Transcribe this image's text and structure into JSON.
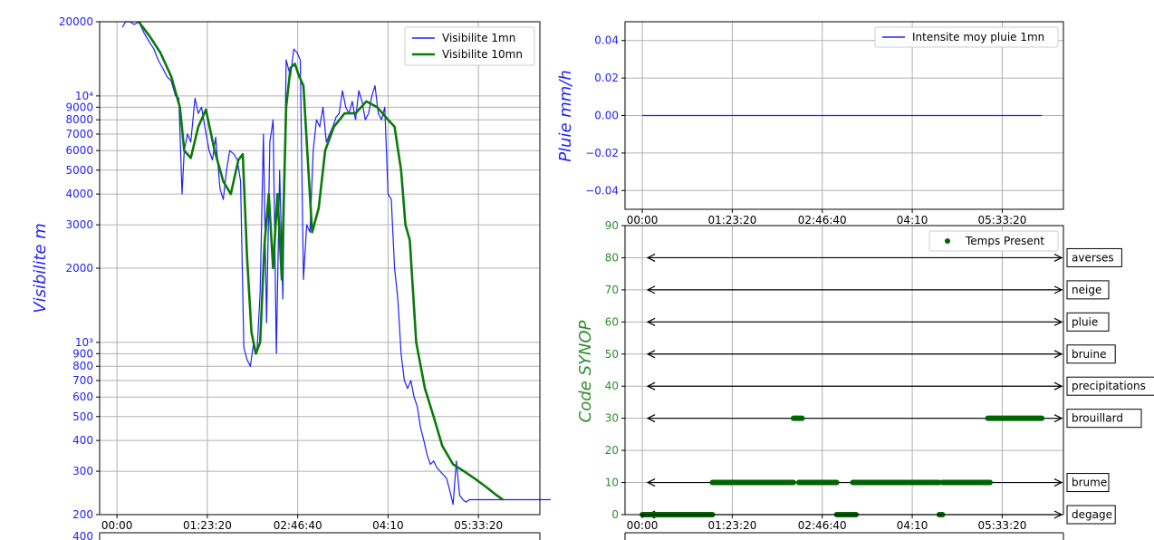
{
  "colors": {
    "vis_1mn": "#1f1fff",
    "vis_10mn": "#0a7a0a",
    "pluie": "#1f1fff",
    "synop": "#006400",
    "axis_label_left": "#1f1fff",
    "axis_label_synop": "#2e8b2e",
    "grid": "#b0b0b0"
  },
  "x_ticks": [
    "00:00",
    "01:23:20",
    "02:46:40",
    "04:10",
    "05:33:20"
  ],
  "chart_data": [
    {
      "type": "line",
      "title": "",
      "xlabel": "",
      "ylabel": "Visibilite  m",
      "yscale": "log",
      "ylim": [
        200,
        20000
      ],
      "y_tick_labels": [
        "20000",
        "10⁴",
        "9000",
        "8000",
        "7000",
        "6000",
        "5000",
        "4000",
        "3000",
        "2000",
        "10³",
        "900",
        "800",
        "700",
        "600",
        "500",
        "400",
        "300",
        "200"
      ],
      "legend_position": "top-right",
      "series": [
        {
          "name": "Visibilite 1mn",
          "x_minutes": [
            5,
            8,
            12,
            16,
            20,
            25,
            30,
            34,
            38,
            42,
            46,
            50,
            54,
            57,
            60,
            62,
            65,
            68,
            72,
            75,
            78,
            81,
            85,
            88,
            91,
            95,
            98,
            101,
            104,
            108,
            111,
            114,
            117,
            120,
            123,
            126,
            129,
            132,
            135,
            138,
            141,
            144,
            147,
            150,
            153,
            156,
            160,
            163,
            166,
            169,
            172,
            175,
            178,
            181,
            184,
            187,
            190,
            193,
            196,
            199,
            202,
            205,
            208,
            211,
            214,
            217,
            220,
            223,
            226,
            229,
            232,
            235,
            238,
            241,
            244,
            247,
            250,
            253,
            256,
            259,
            262,
            265,
            268,
            271,
            274,
            277,
            280,
            283,
            286,
            289,
            292,
            295,
            298,
            301,
            304,
            307,
            310,
            313,
            316,
            319,
            322,
            325,
            328,
            331,
            334,
            337,
            340,
            343,
            346,
            349,
            352,
            355,
            358,
            361,
            364,
            367,
            370,
            373,
            376,
            379,
            382,
            385,
            388,
            391,
            394,
            397,
            400
          ],
          "values": [
            19000,
            20000,
            20000,
            19500,
            20000,
            18000,
            16500,
            15500,
            14000,
            13000,
            12000,
            11500,
            10000,
            9800,
            4000,
            6000,
            7000,
            6500,
            9800,
            8500,
            9000,
            7500,
            6000,
            5500,
            6800,
            4200,
            3800,
            5000,
            6000,
            5800,
            5500,
            4500,
            950,
            850,
            800,
            1000,
            900,
            1600,
            7000,
            1200,
            6500,
            8000,
            900,
            5000,
            1500,
            14000,
            12000,
            15500,
            15000,
            14000,
            1800,
            3000,
            2800,
            6000,
            8000,
            7500,
            9000,
            6500,
            7000,
            7500,
            8200,
            8500,
            10500,
            9000,
            8500,
            9500,
            8000,
            10500,
            9500,
            8000,
            8500,
            10000,
            11000,
            8500,
            8000,
            9000,
            4000,
            3800,
            2000,
            1500,
            900,
            700,
            650,
            700,
            600,
            550,
            450,
            400,
            350,
            320,
            330,
            310,
            300,
            290,
            280,
            250,
            220,
            330,
            240,
            230,
            225,
            230,
            230,
            230,
            230,
            230,
            230,
            230,
            230,
            230,
            230,
            230,
            230,
            230,
            230,
            230,
            230,
            230,
            230,
            230,
            230,
            230,
            230,
            230,
            230,
            230,
            230
          ]
        },
        {
          "name": "Visibilite 10mn",
          "x_minutes": [
            20,
            30,
            40,
            50,
            58,
            62,
            68,
            75,
            82,
            90,
            98,
            105,
            112,
            116,
            120,
            124,
            128,
            132,
            136,
            140,
            144,
            148,
            152,
            156,
            160,
            164,
            168,
            172,
            176,
            180,
            186,
            192,
            200,
            210,
            220,
            230,
            240,
            250,
            256,
            262,
            266,
            270,
            276,
            284,
            292,
            300,
            310,
            320,
            330,
            340,
            350,
            356
          ],
          "values": [
            20000,
            17500,
            15000,
            12000,
            9000,
            6000,
            5600,
            7500,
            8800,
            6000,
            4500,
            4000,
            5500,
            5800,
            2200,
            1100,
            900,
            1000,
            2500,
            4000,
            2000,
            4000,
            1800,
            9000,
            13000,
            13500,
            12000,
            11000,
            5500,
            2800,
            3500,
            6000,
            7500,
            8500,
            8500,
            9500,
            9000,
            8000,
            7500,
            5000,
            3000,
            2600,
            1000,
            650,
            500,
            380,
            320,
            300,
            280,
            260,
            240,
            230
          ]
        }
      ]
    },
    {
      "type": "line",
      "title": "",
      "xlabel": "",
      "ylabel": "Pluie  mm/h",
      "ylim": [
        -0.05,
        0.05
      ],
      "y_tick_labels": [
        "0.04",
        "0.02",
        "0.00",
        "−0.02",
        "−0.04"
      ],
      "legend_position": "top-right",
      "series": [
        {
          "name": "Intensite moy pluie 1mn",
          "x_minutes": [
            0,
            370
          ],
          "values": [
            0,
            0
          ]
        }
      ]
    },
    {
      "type": "scatter",
      "title": "",
      "xlabel": "",
      "ylabel": "Code  SYNOP",
      "ylim": [
        0,
        90
      ],
      "y_tick_labels": [
        "90",
        "80",
        "70",
        "60",
        "50",
        "40",
        "30",
        "20",
        "10",
        "0"
      ],
      "legend_position": "top-right",
      "series": [
        {
          "name": "Temps Present",
          "runs": [
            {
              "code": 0,
              "from": 0,
              "to": 65
            },
            {
              "code": 0,
              "from": 180,
              "to": 198
            },
            {
              "code": 0,
              "from": 275,
              "to": 278
            },
            {
              "code": 10,
              "from": 65,
              "to": 140
            },
            {
              "code": 10,
              "from": 145,
              "to": 180
            },
            {
              "code": 10,
              "from": 195,
              "to": 275
            },
            {
              "code": 10,
              "from": 278,
              "to": 322
            },
            {
              "code": 30,
              "from": 140,
              "to": 148
            },
            {
              "code": 30,
              "from": 320,
              "to": 370
            }
          ]
        }
      ],
      "code_labels": [
        {
          "code": 80,
          "label": "averses"
        },
        {
          "code": 70,
          "label": "neige"
        },
        {
          "code": 60,
          "label": "pluie"
        },
        {
          "code": 50,
          "label": "bruine"
        },
        {
          "code": 40,
          "label": "precipitations"
        },
        {
          "code": 30,
          "label": "brouillard"
        },
        {
          "code": 10,
          "label": "brume"
        },
        {
          "code": 0,
          "label": "degage"
        }
      ]
    }
  ],
  "partial_panels": {
    "bottom_left_top_tick": "400"
  }
}
